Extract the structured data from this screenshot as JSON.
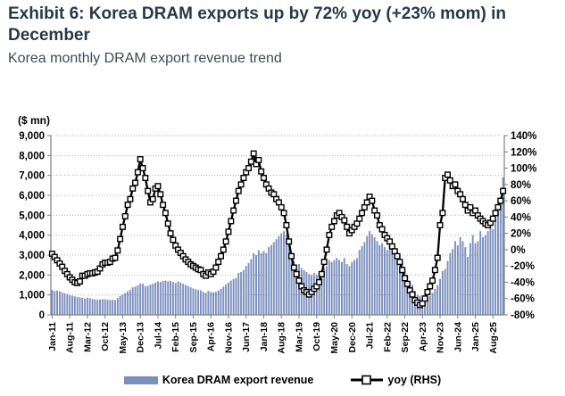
{
  "header": {
    "title": "Exhibit 6: Korea DRAM exports up by 72% yoy (+23% mom) in December",
    "subtitle": "Korea monthly DRAM export revenue trend"
  },
  "chart": {
    "unit_label": "($ mn)",
    "legend": [
      {
        "label": "Korea DRAM export revenue",
        "type": "bar"
      },
      {
        "label": "yoy (RHS)",
        "type": "line"
      }
    ],
    "colors": {
      "bar": "#7c90be",
      "line": "#000000",
      "marker_fill": "#ffffff",
      "grid": "#b0b0b0",
      "axis": "#7f7f7f",
      "tick_text": "#000000"
    }
  },
  "chart_data": {
    "type": "bar",
    "title": "Korea monthly DRAM export revenue trend",
    "x_start": "Jan-11",
    "x_end": "Dec-25",
    "x_tick_labels": [
      "Jan-11",
      "Aug-11",
      "Mar-12",
      "Oct-12",
      "May-13",
      "Dec-13",
      "Jul-14",
      "Feb-15",
      "Sep-15",
      "Apr-16",
      "Nov-16",
      "Jun-17",
      "Jan-18",
      "Aug-18",
      "Mar-19",
      "Oct-19",
      "May-20",
      "Dec-20",
      "Jul-21",
      "Feb-22",
      "Sep-22",
      "Apr-23",
      "Nov-23",
      "Jun-24",
      "Jan-25",
      "Aug-25"
    ],
    "tick_interval_months": 7,
    "left_axis": {
      "label": "($ mn)",
      "min": 0,
      "max": 9000,
      "step": 1000
    },
    "right_axis": {
      "label": "yoy %",
      "min": -80,
      "max": 140,
      "step": 20,
      "suffix": "%"
    },
    "grid": "dotted horizontal",
    "legend_position": "bottom",
    "series": [
      {
        "name": "Korea DRAM export revenue",
        "type": "bar",
        "axis": "left",
        "values": [
          1250,
          1200,
          1220,
          1180,
          1130,
          1080,
          1040,
          1000,
          960,
          930,
          900,
          880,
          850,
          820,
          860,
          840,
          800,
          780,
          760,
          770,
          790,
          780,
          760,
          750,
          760,
          740,
          850,
          950,
          1020,
          1100,
          1180,
          1250,
          1380,
          1420,
          1480,
          1580,
          1560,
          1440,
          1450,
          1520,
          1560,
          1620,
          1680,
          1650,
          1700,
          1720,
          1680,
          1700,
          1650,
          1600,
          1680,
          1620,
          1560,
          1500,
          1450,
          1380,
          1320,
          1280,
          1250,
          1230,
          1150,
          1100,
          1200,
          1150,
          1130,
          1160,
          1220,
          1300,
          1420,
          1520,
          1620,
          1720,
          1800,
          1850,
          2100,
          2150,
          2250,
          2450,
          2600,
          2800,
          3100,
          3000,
          3250,
          3100,
          3200,
          3100,
          3400,
          3500,
          3650,
          3800,
          3950,
          4100,
          4200,
          4050,
          3750,
          3100,
          2700,
          2450,
          2550,
          2350,
          2250,
          2150,
          2050,
          2000,
          2100,
          2000,
          2100,
          2250,
          2350,
          2450,
          2750,
          2650,
          2750,
          2850,
          2750,
          2650,
          2850,
          2550,
          2450,
          2650,
          2750,
          2850,
          3250,
          3450,
          3650,
          3950,
          4200,
          4050,
          3900,
          3700,
          3500,
          3600,
          3400,
          3250,
          3550,
          3350,
          3400,
          3300,
          3000,
          2600,
          2300,
          2000,
          1700,
          1500,
          1200,
          1000,
          950,
          820,
          850,
          900,
          950,
          1100,
          1300,
          1500,
          1800,
          2200,
          2300,
          2700,
          3100,
          3300,
          3700,
          3500,
          3900,
          3700,
          3400,
          2900,
          3600,
          4000,
          3600,
          3700,
          4200,
          3900,
          4000,
          4200,
          4400,
          4300,
          4800,
          5200,
          5600,
          6900
        ]
      },
      {
        "name": "yoy (RHS)",
        "type": "line",
        "axis": "right",
        "values": [
          -5,
          -9,
          -13,
          -17,
          -21,
          -26,
          -30,
          -34,
          -37,
          -40,
          -41,
          -39,
          -32,
          -32,
          -30,
          -29,
          -29,
          -28,
          -27,
          -23,
          -18,
          -16,
          -16,
          -15,
          -11,
          -10,
          -1,
          13,
          28,
          41,
          55,
          62,
          75,
          82,
          95,
          111,
          100,
          88,
          72,
          58,
          62,
          75,
          78,
          68,
          55,
          45,
          32,
          20,
          12,
          5,
          0,
          -4,
          -8,
          -12,
          -15,
          -18,
          -20,
          -22,
          -24,
          -25,
          -30,
          -32,
          -28,
          -30,
          -27,
          -22,
          -15,
          -8,
          0,
          10,
          22,
          35,
          48,
          60,
          72,
          80,
          88,
          95,
          100,
          108,
          118,
          105,
          110,
          96,
          88,
          80,
          75,
          70,
          68,
          62,
          58,
          52,
          45,
          30,
          10,
          -8,
          -22,
          -30,
          -38,
          -45,
          -50,
          -52,
          -55,
          -52,
          -48,
          -45,
          -40,
          -30,
          -15,
          0,
          18,
          28,
          35,
          42,
          45,
          40,
          36,
          28,
          20,
          24,
          28,
          32,
          38,
          45,
          52,
          58,
          65,
          60,
          48,
          42,
          30,
          25,
          18,
          14,
          10,
          4,
          -2,
          -8,
          -15,
          -25,
          -35,
          -42,
          -50,
          -55,
          -62,
          -65,
          -68,
          -66,
          -60,
          -52,
          -45,
          -38,
          -25,
          -10,
          30,
          45,
          88,
          92,
          85,
          78,
          80,
          72,
          68,
          62,
          55,
          48,
          52,
          45,
          48,
          42,
          38,
          35,
          32,
          30,
          33,
          38,
          45,
          52,
          60,
          72
        ]
      }
    ]
  }
}
